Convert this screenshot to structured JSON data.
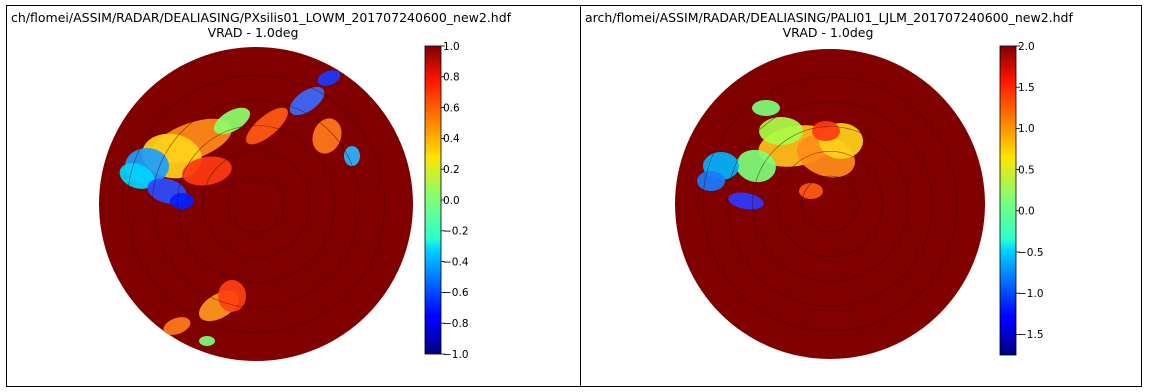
{
  "chart_data": [
    {
      "type": "heatmap",
      "plot_kind": "radar PPI (polar), range rings",
      "title": "ch/flomei/ASSIM/RADAR/DEALIASING/PXsilis01_LOWM_201707240600_new2.hdf",
      "subtitle": "VRAD - 1.0deg",
      "colormap": "jet",
      "background_color": "#800000",
      "colorbar": {
        "range": [
          -1.0,
          1.0
        ],
        "ticks": [
          "1.0",
          "0.8",
          "0.6",
          "0.4",
          "0.2",
          "0.0",
          "−0.2",
          "−0.4",
          "−0.6",
          "−0.8",
          "−1.0"
        ],
        "tick_values": [
          1.0,
          0.8,
          0.6,
          0.4,
          0.2,
          0.0,
          -0.2,
          -0.4,
          -0.6,
          -0.8,
          -1.0
        ]
      },
      "grid": true
    },
    {
      "type": "heatmap",
      "plot_kind": "radar PPI (polar), range rings",
      "title": "arch/flomei/ASSIM/RADAR/DEALIASING/PALI01_LJLM_201707240600_new2.hdf",
      "subtitle": "VRAD - 1.0deg",
      "colormap": "jet",
      "background_color": "#800000",
      "colorbar": {
        "range": [
          -1.75,
          2.0
        ],
        "ticks": [
          "2.0",
          "1.5",
          "1.0",
          "0.5",
          "0.0",
          "−0.5",
          "−1.0",
          "−1.5"
        ],
        "tick_values": [
          2.0,
          1.5,
          1.0,
          0.5,
          0.0,
          -0.5,
          -1.0,
          -1.5
        ]
      },
      "grid": true
    }
  ]
}
